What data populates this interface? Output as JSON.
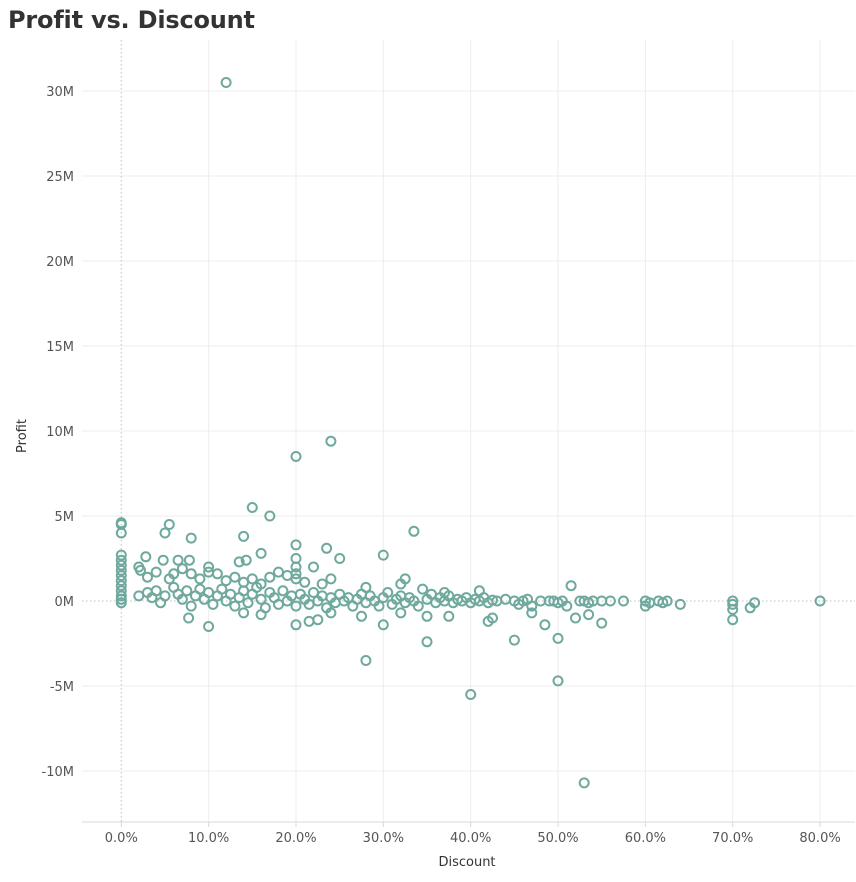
{
  "chart_data": {
    "type": "scatter",
    "title": "Profit vs. Discount",
    "xlabel": "Discount",
    "ylabel": "Profit",
    "xlim": [
      -0.045,
      0.84
    ],
    "ylim": [
      -13000000,
      33000000
    ],
    "x_ticks": [
      {
        "value": 0.0,
        "label": "0.0%"
      },
      {
        "value": 0.1,
        "label": "10.0%"
      },
      {
        "value": 0.2,
        "label": "20.0%"
      },
      {
        "value": 0.3,
        "label": "30.0%"
      },
      {
        "value": 0.4,
        "label": "40.0%"
      },
      {
        "value": 0.5,
        "label": "50.0%"
      },
      {
        "value": 0.6,
        "label": "60.0%"
      },
      {
        "value": 0.7,
        "label": "70.0%"
      },
      {
        "value": 0.8,
        "label": "80.0%"
      }
    ],
    "y_ticks": [
      {
        "value": 30000000,
        "label": "30M"
      },
      {
        "value": 25000000,
        "label": "25M"
      },
      {
        "value": 20000000,
        "label": "20M"
      },
      {
        "value": 15000000,
        "label": "15M"
      },
      {
        "value": 10000000,
        "label": "10M"
      },
      {
        "value": 5000000,
        "label": "5M"
      },
      {
        "value": 0,
        "label": "0M"
      },
      {
        "value": -5000000,
        "label": "-5M"
      },
      {
        "value": -10000000,
        "label": "-10M"
      }
    ],
    "grid": true,
    "marker_color": "#6fa99e",
    "series": [
      {
        "values": [
          [
            0.12,
            30500000
          ],
          [
            0.24,
            9400000
          ],
          [
            0.2,
            8500000
          ],
          [
            0.15,
            5500000
          ],
          [
            0.17,
            5000000
          ],
          [
            0.335,
            4100000
          ],
          [
            0.055,
            4500000
          ],
          [
            0.05,
            4000000
          ],
          [
            0.08,
            3700000
          ],
          [
            0.14,
            3800000
          ],
          [
            0.2,
            3300000
          ],
          [
            0.235,
            3100000
          ],
          [
            0.16,
            2800000
          ],
          [
            0.3,
            2700000
          ],
          [
            0.25,
            2500000
          ],
          [
            0.0,
            4600000
          ],
          [
            0.0,
            4500000
          ],
          [
            0.0,
            4000000
          ],
          [
            0.0,
            2700000
          ],
          [
            0.0,
            2400000
          ],
          [
            0.0,
            2100000
          ],
          [
            0.0,
            1800000
          ],
          [
            0.0,
            1500000
          ],
          [
            0.0,
            1200000
          ],
          [
            0.0,
            900000
          ],
          [
            0.0,
            600000
          ],
          [
            0.0,
            300000
          ],
          [
            0.0,
            100000
          ],
          [
            0.0,
            -100000
          ],
          [
            0.028,
            2600000
          ],
          [
            0.065,
            2400000
          ],
          [
            0.078,
            2400000
          ],
          [
            0.048,
            2400000
          ],
          [
            0.135,
            2300000
          ],
          [
            0.143,
            2400000
          ],
          [
            0.1,
            2000000
          ],
          [
            0.1,
            1700000
          ],
          [
            0.02,
            2000000
          ],
          [
            0.022,
            1800000
          ],
          [
            0.03,
            1400000
          ],
          [
            0.04,
            1700000
          ],
          [
            0.055,
            1300000
          ],
          [
            0.06,
            1600000
          ],
          [
            0.07,
            1900000
          ],
          [
            0.08,
            1600000
          ],
          [
            0.09,
            1300000
          ],
          [
            0.11,
            1600000
          ],
          [
            0.12,
            1200000
          ],
          [
            0.13,
            1400000
          ],
          [
            0.14,
            1100000
          ],
          [
            0.15,
            1300000
          ],
          [
            0.16,
            1000000
          ],
          [
            0.17,
            1400000
          ],
          [
            0.18,
            1700000
          ],
          [
            0.19,
            1500000
          ],
          [
            0.2,
            2500000
          ],
          [
            0.2,
            2000000
          ],
          [
            0.2,
            1600000
          ],
          [
            0.2,
            1300000
          ],
          [
            0.21,
            1100000
          ],
          [
            0.22,
            2000000
          ],
          [
            0.23,
            1000000
          ],
          [
            0.24,
            1300000
          ],
          [
            0.28,
            800000
          ],
          [
            0.325,
            1300000
          ],
          [
            0.32,
            1000000
          ],
          [
            0.345,
            700000
          ],
          [
            0.37,
            500000
          ],
          [
            0.41,
            600000
          ],
          [
            0.515,
            900000
          ],
          [
            0.02,
            300000
          ],
          [
            0.03,
            500000
          ],
          [
            0.035,
            200000
          ],
          [
            0.04,
            600000
          ],
          [
            0.045,
            -100000
          ],
          [
            0.05,
            300000
          ],
          [
            0.06,
            800000
          ],
          [
            0.065,
            400000
          ],
          [
            0.07,
            100000
          ],
          [
            0.075,
            600000
          ],
          [
            0.08,
            -300000
          ],
          [
            0.085,
            300000
          ],
          [
            0.09,
            700000
          ],
          [
            0.095,
            100000
          ],
          [
            0.1,
            500000
          ],
          [
            0.105,
            -200000
          ],
          [
            0.11,
            300000
          ],
          [
            0.115,
            700000
          ],
          [
            0.12,
            0
          ],
          [
            0.125,
            400000
          ],
          [
            0.13,
            -300000
          ],
          [
            0.135,
            200000
          ],
          [
            0.14,
            600000
          ],
          [
            0.145,
            -100000
          ],
          [
            0.15,
            400000
          ],
          [
            0.155,
            800000
          ],
          [
            0.16,
            100000
          ],
          [
            0.165,
            -400000
          ],
          [
            0.17,
            500000
          ],
          [
            0.175,
            200000
          ],
          [
            0.18,
            -200000
          ],
          [
            0.185,
            600000
          ],
          [
            0.19,
            0
          ],
          [
            0.195,
            300000
          ],
          [
            0.2,
            -300000
          ],
          [
            0.205,
            400000
          ],
          [
            0.21,
            100000
          ],
          [
            0.215,
            -200000
          ],
          [
            0.22,
            500000
          ],
          [
            0.225,
            0
          ],
          [
            0.23,
            300000
          ],
          [
            0.235,
            -400000
          ],
          [
            0.24,
            200000
          ],
          [
            0.245,
            -100000
          ],
          [
            0.25,
            400000
          ],
          [
            0.255,
            0
          ],
          [
            0.26,
            200000
          ],
          [
            0.265,
            -300000
          ],
          [
            0.27,
            100000
          ],
          [
            0.275,
            400000
          ],
          [
            0.28,
            -100000
          ],
          [
            0.285,
            300000
          ],
          [
            0.29,
            0
          ],
          [
            0.295,
            -300000
          ],
          [
            0.3,
            200000
          ],
          [
            0.305,
            500000
          ],
          [
            0.31,
            -200000
          ],
          [
            0.315,
            100000
          ],
          [
            0.32,
            300000
          ],
          [
            0.325,
            -100000
          ],
          [
            0.33,
            200000
          ],
          [
            0.335,
            0
          ],
          [
            0.34,
            -300000
          ],
          [
            0.35,
            100000
          ],
          [
            0.355,
            400000
          ],
          [
            0.36,
            -100000
          ],
          [
            0.365,
            200000
          ],
          [
            0.37,
            0
          ],
          [
            0.375,
            300000
          ],
          [
            0.38,
            -100000
          ],
          [
            0.385,
            100000
          ],
          [
            0.39,
            0
          ],
          [
            0.395,
            200000
          ],
          [
            0.4,
            -100000
          ],
          [
            0.405,
            100000
          ],
          [
            0.41,
            0
          ],
          [
            0.415,
            200000
          ],
          [
            0.42,
            -100000
          ],
          [
            0.425,
            50000
          ],
          [
            0.43,
            0
          ],
          [
            0.44,
            100000
          ],
          [
            0.45,
            0
          ],
          [
            0.455,
            -200000
          ],
          [
            0.46,
            0
          ],
          [
            0.465,
            100000
          ],
          [
            0.47,
            -300000
          ],
          [
            0.48,
            0
          ],
          [
            0.49,
            0
          ],
          [
            0.495,
            0
          ],
          [
            0.5,
            -100000
          ],
          [
            0.505,
            0
          ],
          [
            0.51,
            -300000
          ],
          [
            0.525,
            0
          ],
          [
            0.53,
            0
          ],
          [
            0.535,
            -100000
          ],
          [
            0.54,
            0
          ],
          [
            0.55,
            0
          ],
          [
            0.56,
            0
          ],
          [
            0.575,
            0
          ],
          [
            0.6,
            0
          ],
          [
            0.6,
            -300000
          ],
          [
            0.605,
            -100000
          ],
          [
            0.615,
            0
          ],
          [
            0.62,
            -100000
          ],
          [
            0.625,
            0
          ],
          [
            0.64,
            -200000
          ],
          [
            0.7,
            0
          ],
          [
            0.7,
            -200000
          ],
          [
            0.7,
            -500000
          ],
          [
            0.7,
            -1100000
          ],
          [
            0.725,
            -100000
          ],
          [
            0.72,
            -400000
          ],
          [
            0.8,
            0
          ],
          [
            0.077,
            -1000000
          ],
          [
            0.1,
            -1500000
          ],
          [
            0.14,
            -700000
          ],
          [
            0.16,
            -800000
          ],
          [
            0.2,
            -1400000
          ],
          [
            0.215,
            -1200000
          ],
          [
            0.225,
            -1100000
          ],
          [
            0.24,
            -700000
          ],
          [
            0.275,
            -900000
          ],
          [
            0.3,
            -1400000
          ],
          [
            0.32,
            -700000
          ],
          [
            0.35,
            -900000
          ],
          [
            0.375,
            -900000
          ],
          [
            0.42,
            -1200000
          ],
          [
            0.425,
            -1000000
          ],
          [
            0.47,
            -700000
          ],
          [
            0.485,
            -1400000
          ],
          [
            0.52,
            -1000000
          ],
          [
            0.535,
            -800000
          ],
          [
            0.55,
            -1300000
          ],
          [
            0.28,
            -3500000
          ],
          [
            0.35,
            -2400000
          ],
          [
            0.45,
            -2300000
          ],
          [
            0.5,
            -2200000
          ],
          [
            0.4,
            -5500000
          ],
          [
            0.5,
            -4700000
          ],
          [
            0.53,
            -10700000
          ]
        ]
      }
    ]
  }
}
